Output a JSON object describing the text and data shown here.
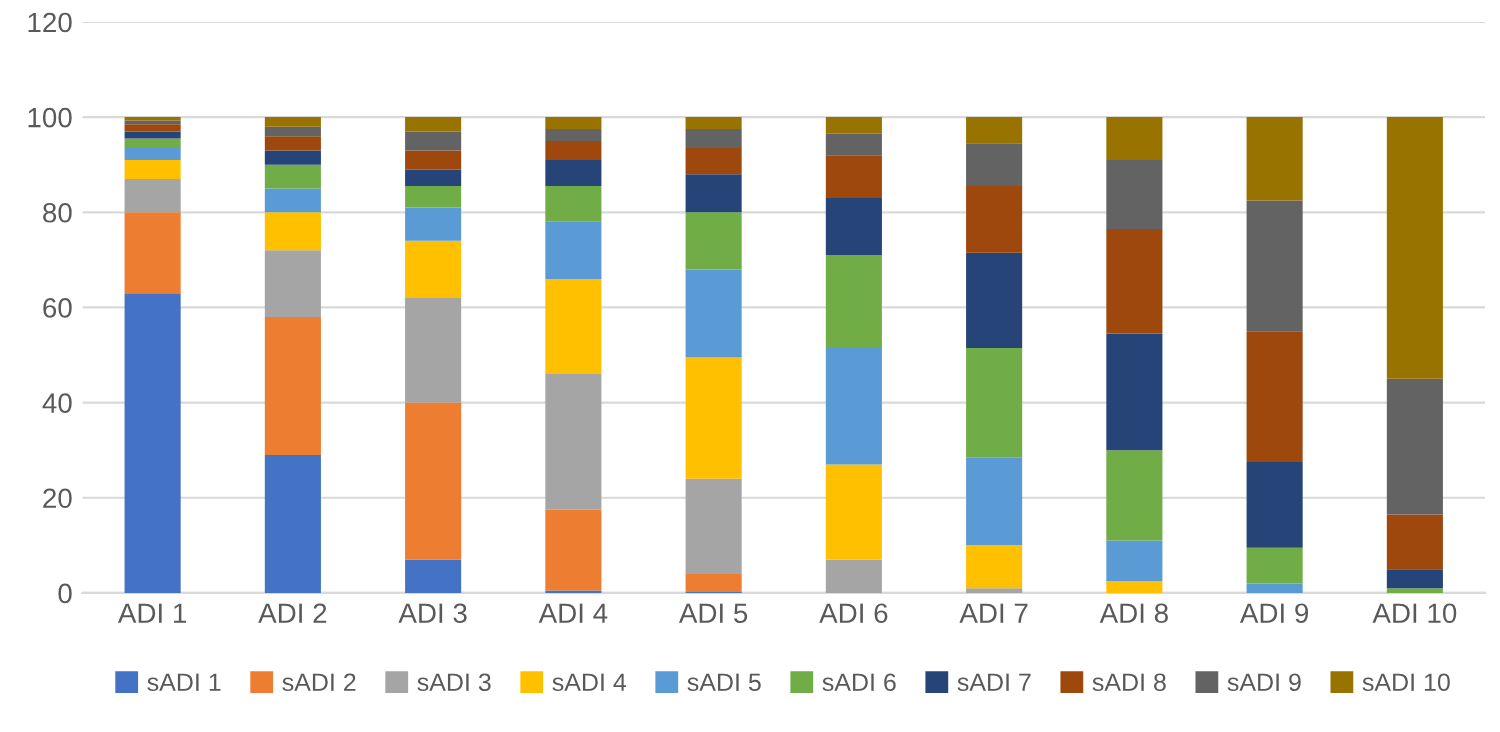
{
  "chart_data": {
    "type": "bar",
    "stacked": true,
    "grid": "y",
    "legend": "bottom",
    "categories": [
      "ADI 1",
      "ADI 2",
      "ADI 3",
      "ADI 4",
      "ADI 5",
      "ADI 6",
      "ADI 7",
      "ADI 8",
      "ADI 9",
      "ADI 10"
    ],
    "ylim": [
      0,
      120
    ],
    "yticks": [
      0,
      20,
      40,
      60,
      80,
      100,
      120
    ],
    "series": [
      {
        "name": "sADI 1",
        "color": "#4472c4",
        "values": [
          63,
          29,
          7,
          0.5,
          0.2,
          0,
          0,
          0,
          0,
          0
        ]
      },
      {
        "name": "sADI 2",
        "color": "#ed7d31",
        "values": [
          17,
          29,
          33,
          17,
          3.8,
          0,
          0,
          0,
          0,
          0
        ]
      },
      {
        "name": "sADI 3",
        "color": "#a5a5a5",
        "values": [
          7,
          14,
          22,
          28.5,
          20,
          7,
          1,
          null,
          0,
          0
        ]
      },
      {
        "name": "sADI 4",
        "color": "#ffc000",
        "values": [
          4,
          8,
          12,
          20,
          25.5,
          20,
          9,
          2.5,
          0,
          0
        ]
      },
      {
        "name": "sADI 5",
        "color": "#5b9bd5",
        "values": [
          2.5,
          5,
          7,
          12,
          18.5,
          24.5,
          18.5,
          8.5,
          2,
          0
        ]
      },
      {
        "name": "sADI 6",
        "color": "#70ad47",
        "values": [
          2,
          5,
          4.5,
          7.5,
          12,
          19.5,
          23,
          19,
          7.5,
          1
        ]
      },
      {
        "name": "sADI 7",
        "color": "#264478",
        "values": [
          1.5,
          3,
          3.5,
          5.5,
          8,
          12,
          20,
          24.5,
          18,
          4
        ]
      },
      {
        "name": "sADI 8",
        "color": "#9e480e",
        "values": [
          1.5,
          3,
          4,
          4,
          5.5,
          9,
          14,
          22,
          27.5,
          11.5
        ]
      },
      {
        "name": "sADI 9",
        "color": "#636363",
        "values": [
          0.8,
          2,
          4,
          2.5,
          4,
          4.5,
          9,
          14.5,
          27.5,
          28.5
        ]
      },
      {
        "name": "sADI 10",
        "color": "#997300",
        "values": [
          0.7,
          2,
          3,
          2.5,
          2.5,
          3.5,
          5.5,
          9,
          17.5,
          55
        ]
      }
    ]
  }
}
